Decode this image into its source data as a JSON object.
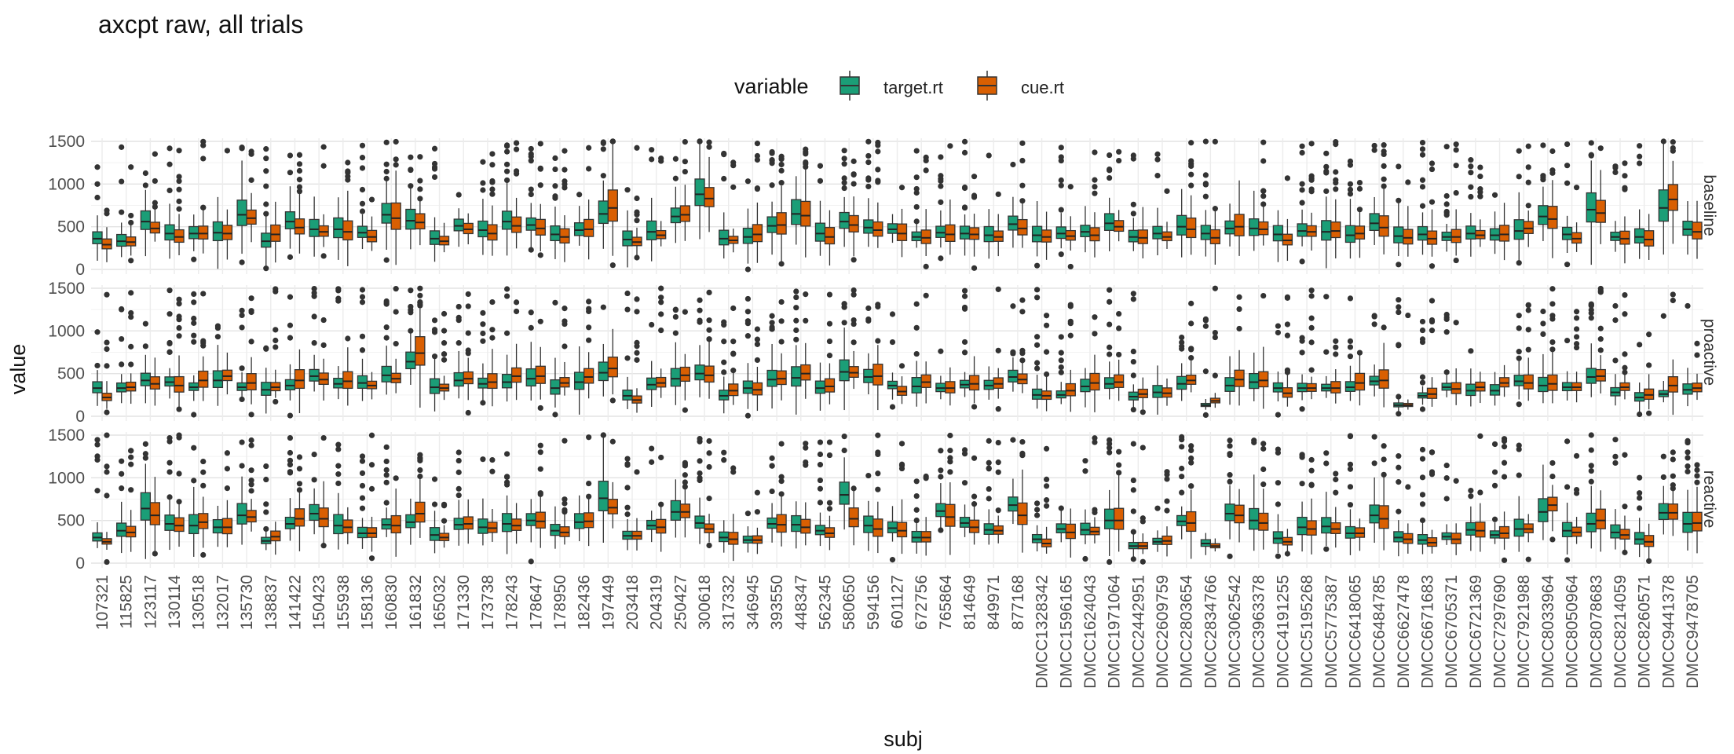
{
  "chart_data": {
    "type": "boxplot",
    "title": "axcpt raw, all trials",
    "xlabel": "subj",
    "ylabel": "value",
    "ylim": [
      0,
      1500
    ],
    "yticks": [
      0,
      500,
      1000,
      1500
    ],
    "grid": true,
    "legend": {
      "title": "variable",
      "placement": "top-center",
      "entries": [
        "target.rt",
        "cue.rt"
      ]
    },
    "series": [
      {
        "name": "target.rt",
        "color": "#1b9e77"
      },
      {
        "name": "cue.rt",
        "color": "#d95f02"
      }
    ],
    "facets": [
      "baseline",
      "proactive",
      "reactive"
    ],
    "categories": [
      "107321",
      "115825",
      "123117",
      "130114",
      "130518",
      "132017",
      "135730",
      "138837",
      "141422",
      "150423",
      "155938",
      "158136",
      "160830",
      "161832",
      "165032",
      "171330",
      "173738",
      "178243",
      "178647",
      "178950",
      "182436",
      "197449",
      "203418",
      "204319",
      "250427",
      "300618",
      "317332",
      "346945",
      "393550",
      "448347",
      "562345",
      "580650",
      "594156",
      "601127",
      "672756",
      "765864",
      "814649",
      "849971",
      "877168",
      "DMCC1328342",
      "DMCC1596165",
      "DMCC1624043",
      "DMCC1971064",
      "DMCC2442951",
      "DMCC2609759",
      "DMCC2803654",
      "DMCC2834766",
      "DMCC3062542",
      "DMCC3963378",
      "DMCC4191255",
      "DMCC5195268",
      "DMCC5775387",
      "DMCC6418065",
      "DMCC6484785",
      "DMCC6627478",
      "DMCC6671683",
      "DMCC6705371",
      "DMCC6721369",
      "DMCC7297690",
      "DMCC7921988",
      "DMCC8033964",
      "DMCC8050964",
      "DMCC8078683",
      "DMCC8214059",
      "DMCC8260571",
      "DMCC9441378",
      "DMCC9478705"
    ],
    "medians": {
      "baseline": {
        "target.rt": [
          360,
          330,
          560,
          420,
          420,
          430,
          640,
          330,
          560,
          470,
          470,
          430,
          640,
          570,
          360,
          510,
          460,
          560,
          520,
          410,
          460,
          650,
          350,
          440,
          620,
          880,
          360,
          380,
          510,
          650,
          420,
          560,
          490,
          470,
          380,
          430,
          420,
          400,
          530,
          400,
          420,
          440,
          540,
          380,
          420,
          500,
          420,
          480,
          480,
          410,
          450,
          440,
          400,
          540,
          390,
          410,
          380,
          420,
          400,
          450,
          620,
          410,
          700,
          380,
          380,
          720,
          470
        ],
        "cue.rt": [
          290,
          320,
          480,
          380,
          420,
          420,
          600,
          410,
          490,
          440,
          440,
          380,
          600,
          550,
          330,
          470,
          420,
          510,
          480,
          380,
          470,
          720,
          320,
          400,
          640,
          830,
          340,
          410,
          520,
          630,
          380,
          520,
          460,
          420,
          370,
          410,
          410,
          380,
          480,
          380,
          390,
          400,
          500,
          370,
          380,
          470,
          370,
          500,
          470,
          340,
          440,
          450,
          420,
          490,
          370,
          360,
          380,
          400,
          410,
          480,
          590,
          360,
          660,
          360,
          350,
          820,
          440
        ]
      },
      "proactive": {
        "target.rt": [
          330,
          330,
          420,
          400,
          340,
          420,
          340,
          310,
          360,
          470,
          380,
          390,
          480,
          640,
          340,
          420,
          380,
          400,
          440,
          330,
          400,
          510,
          240,
          370,
          440,
          500,
          240,
          330,
          430,
          450,
          330,
          520,
          460,
          360,
          350,
          330,
          370,
          360,
          460,
          250,
          250,
          350,
          380,
          230,
          280,
          380,
          130,
          360,
          400,
          330,
          330,
          330,
          340,
          410,
          130,
          240,
          340,
          300,
          300,
          410,
          360,
          340,
          460,
          280,
          220,
          260,
          310
        ],
        "cue.rt": [
          220,
          340,
          380,
          360,
          420,
          470,
          390,
          340,
          420,
          430,
          410,
          360,
          440,
          740,
          330,
          440,
          400,
          470,
          470,
          390,
          460,
          560,
          190,
          390,
          480,
          480,
          300,
          310,
          440,
          500,
          350,
          510,
          470,
          290,
          400,
          330,
          380,
          380,
          430,
          240,
          300,
          390,
          400,
          260,
          270,
          420,
          180,
          430,
          420,
          270,
          330,
          330,
          390,
          420,
          130,
          260,
          320,
          340,
          390,
          390,
          380,
          340,
          470,
          340,
          250,
          360,
          330
        ]
      },
      "reactive": {
        "target.rt": [
          300,
          380,
          640,
          460,
          440,
          420,
          560,
          260,
          460,
          580,
          440,
          350,
          450,
          480,
          330,
          450,
          420,
          460,
          500,
          380,
          480,
          760,
          320,
          440,
          600,
          470,
          300,
          270,
          460,
          450,
          380,
          800,
          440,
          410,
          300,
          610,
          470,
          390,
          680,
          280,
          400,
          390,
          500,
          200,
          250,
          490,
          230,
          580,
          500,
          290,
          420,
          430,
          350,
          560,
          300,
          270,
          310,
          390,
          330,
          400,
          600,
          380,
          460,
          360,
          280,
          590,
          460
        ],
        "cue.rt": [
          250,
          360,
          560,
          440,
          480,
          420,
          540,
          310,
          520,
          520,
          420,
          350,
          440,
          580,
          300,
          460,
          410,
          440,
          490,
          360,
          490,
          650,
          320,
          420,
          600,
          400,
          280,
          270,
          450,
          420,
          350,
          520,
          400,
          380,
          300,
          540,
          420,
          380,
          560,
          230,
          360,
          370,
          500,
          200,
          260,
          470,
          200,
          560,
          470,
          250,
          400,
          400,
          350,
          520,
          280,
          240,
          280,
          380,
          350,
          400,
          680,
          360,
          500,
          330,
          250,
          590,
          470
        ]
      }
    }
  }
}
